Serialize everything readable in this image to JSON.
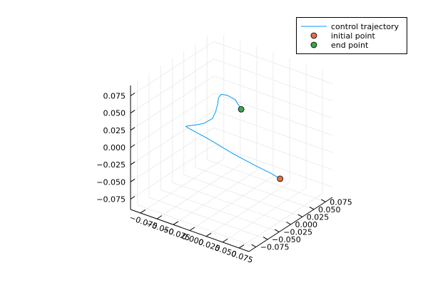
{
  "chart_data": {
    "type": "line3d",
    "title": "",
    "xlabel": "",
    "ylabel": "",
    "zlabel": "",
    "xlim": [
      -0.09,
      0.09
    ],
    "ylim": [
      -0.09,
      0.09
    ],
    "zlim": [
      -0.09,
      0.09
    ],
    "x_ticks": [
      -0.075,
      -0.05,
      -0.025,
      0.0,
      0.025,
      0.05,
      0.075
    ],
    "y_ticks": [
      -0.075,
      -0.05,
      -0.025,
      0.0,
      0.025,
      0.05,
      0.075
    ],
    "z_ticks": [
      -0.075,
      -0.05,
      -0.025,
      0.0,
      0.025,
      0.05,
      0.075
    ],
    "x_tick_labels": [
      "−0.075",
      "−0.050",
      "−0.025",
      "0.000",
      "0.025",
      "0.050",
      "0.075"
    ],
    "y_tick_labels": [
      "−0.075",
      "−0.050",
      "−0.025",
      "0.000",
      "0.025",
      "0.050",
      "0.075"
    ],
    "z_tick_labels": [
      "−0.075",
      "−0.050",
      "−0.025",
      "0.000",
      "0.025",
      "0.050",
      "0.075"
    ],
    "grid": true,
    "legend_position": "top-right",
    "series": [
      {
        "name": "control trajectory",
        "kind": "line",
        "color": "#009af9",
        "x": [
          0.0702,
          0.0555,
          0.0354,
          0.0155,
          -0.0061,
          -0.0263,
          -0.0446,
          -0.0585,
          -0.0654,
          -0.0651,
          -0.0585,
          -0.0445,
          -0.0267,
          -0.0132,
          -0.0089,
          -0.0083,
          -0.0136,
          -0.0181,
          -0.0153,
          -0.0048,
          0.0089
        ],
        "y": [
          0.0053,
          0.0059,
          0.006,
          0.0071,
          0.0086,
          0.0104,
          0.0099,
          0.0065,
          0.0005,
          -0.0061,
          -0.0115,
          -0.0174,
          -0.0214,
          -0.0223,
          -0.0216,
          -0.0181,
          -0.0087,
          0.0037,
          0.0126,
          0.0149,
          0.0083
        ],
        "z": [
          -0.0327,
          -0.0299,
          -0.0272,
          -0.025,
          -0.0224,
          -0.0189,
          -0.0145,
          -0.0093,
          -0.0034,
          0.0025,
          0.0078,
          0.0161,
          0.0266,
          0.0385,
          0.0496,
          0.0592,
          0.0627,
          0.0606,
          0.0562,
          0.0525,
          0.0461
        ]
      },
      {
        "name": "initial point",
        "kind": "scatter",
        "color": "#e26f46",
        "x": [
          0.0702
        ],
        "y": [
          0.0053
        ],
        "z": [
          -0.0327
        ]
      },
      {
        "name": "end point",
        "kind": "scatter",
        "color": "#3da44d",
        "x": [
          0.0089
        ],
        "y": [
          0.0083
        ],
        "z": [
          0.0461
        ]
      }
    ]
  }
}
